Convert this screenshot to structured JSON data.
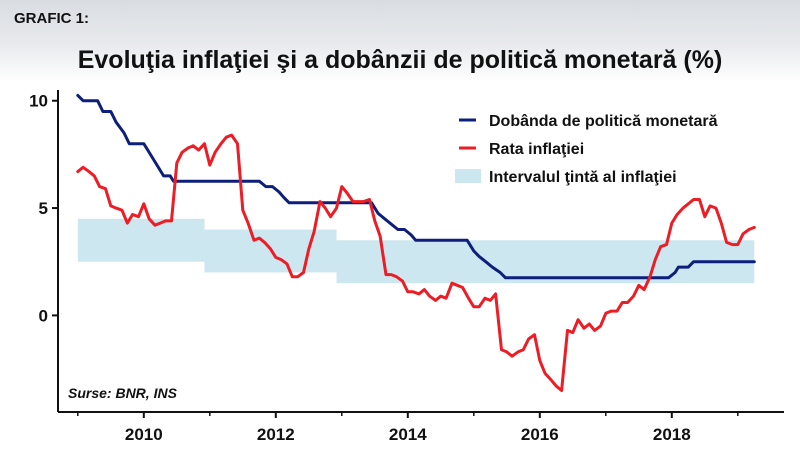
{
  "header": {
    "label": "GRAFIC 1:",
    "title": "Evoluţia inflaţiei şi a dobânzii de politică monetară (%)"
  },
  "chart_data": {
    "type": "line",
    "title": "Evoluţia inflaţiei şi a dobânzii de politică monetară (%)",
    "xlabel": "",
    "ylabel": "",
    "xlim": [
      2008.7,
      2019.7
    ],
    "ylim": [
      -4.5,
      10.5
    ],
    "x_ticks": [
      {
        "value": 2010,
        "label": "2010"
      },
      {
        "value": 2012,
        "label": "2012"
      },
      {
        "value": 2014,
        "label": "2014"
      },
      {
        "value": 2016,
        "label": "2016"
      },
      {
        "value": 2018,
        "label": "2018"
      }
    ],
    "y_ticks": [
      {
        "value": 10,
        "label": "10"
      },
      {
        "value": 5,
        "label": "5"
      },
      {
        "value": 0,
        "label": "0"
      }
    ],
    "grid": false,
    "legend_position": "top-right",
    "source": "Surse: BNR, INS",
    "colors": {
      "policy_rate": "#0d1f7a",
      "inflation": "#ee1c25",
      "target_band": "#cde7f0"
    },
    "series": [
      {
        "name": "Dobânda de politică monetară",
        "key": "policy_rate",
        "points": [
          [
            2009.0,
            10.25
          ],
          [
            2009.08,
            10.0
          ],
          [
            2009.3,
            10.0
          ],
          [
            2009.38,
            9.5
          ],
          [
            2009.5,
            9.5
          ],
          [
            2009.58,
            9.0
          ],
          [
            2009.7,
            8.5
          ],
          [
            2009.78,
            8.0
          ],
          [
            2010.0,
            8.0
          ],
          [
            2010.1,
            7.5
          ],
          [
            2010.2,
            7.0
          ],
          [
            2010.3,
            6.5
          ],
          [
            2010.4,
            6.5
          ],
          [
            2010.45,
            6.25
          ],
          [
            2011.75,
            6.25
          ],
          [
            2011.85,
            6.0
          ],
          [
            2011.95,
            6.0
          ],
          [
            2012.05,
            5.75
          ],
          [
            2012.12,
            5.5
          ],
          [
            2012.2,
            5.25
          ],
          [
            2013.45,
            5.25
          ],
          [
            2013.55,
            4.75
          ],
          [
            2013.65,
            4.5
          ],
          [
            2013.75,
            4.25
          ],
          [
            2013.85,
            4.0
          ],
          [
            2013.95,
            4.0
          ],
          [
            2014.05,
            3.75
          ],
          [
            2014.12,
            3.5
          ],
          [
            2014.9,
            3.5
          ],
          [
            2015.0,
            3.0
          ],
          [
            2015.08,
            2.75
          ],
          [
            2015.18,
            2.5
          ],
          [
            2015.28,
            2.25
          ],
          [
            2015.4,
            2.0
          ],
          [
            2015.48,
            1.75
          ],
          [
            2017.95,
            1.75
          ],
          [
            2018.05,
            2.0
          ],
          [
            2018.1,
            2.25
          ],
          [
            2018.25,
            2.25
          ],
          [
            2018.33,
            2.5
          ],
          [
            2019.25,
            2.5
          ]
        ]
      },
      {
        "name": "Rata inflaţiei",
        "key": "inflation",
        "points": [
          [
            2009.0,
            6.7
          ],
          [
            2009.08,
            6.9
          ],
          [
            2009.17,
            6.7
          ],
          [
            2009.25,
            6.5
          ],
          [
            2009.33,
            6.0
          ],
          [
            2009.42,
            5.9
          ],
          [
            2009.5,
            5.1
          ],
          [
            2009.58,
            5.0
          ],
          [
            2009.67,
            4.9
          ],
          [
            2009.75,
            4.3
          ],
          [
            2009.83,
            4.7
          ],
          [
            2009.92,
            4.6
          ],
          [
            2010.0,
            5.2
          ],
          [
            2010.08,
            4.5
          ],
          [
            2010.17,
            4.2
          ],
          [
            2010.25,
            4.3
          ],
          [
            2010.33,
            4.4
          ],
          [
            2010.42,
            4.4
          ],
          [
            2010.5,
            7.1
          ],
          [
            2010.58,
            7.6
          ],
          [
            2010.67,
            7.8
          ],
          [
            2010.75,
            7.9
          ],
          [
            2010.83,
            7.7
          ],
          [
            2010.92,
            8.0
          ],
          [
            2011.0,
            7.0
          ],
          [
            2011.08,
            7.6
          ],
          [
            2011.17,
            8.0
          ],
          [
            2011.25,
            8.3
          ],
          [
            2011.33,
            8.4
          ],
          [
            2011.42,
            8.0
          ],
          [
            2011.5,
            4.9
          ],
          [
            2011.58,
            4.3
          ],
          [
            2011.67,
            3.5
          ],
          [
            2011.75,
            3.6
          ],
          [
            2011.83,
            3.4
          ],
          [
            2011.92,
            3.1
          ],
          [
            2012.0,
            2.7
          ],
          [
            2012.08,
            2.6
          ],
          [
            2012.17,
            2.4
          ],
          [
            2012.25,
            1.8
          ],
          [
            2012.33,
            1.8
          ],
          [
            2012.42,
            2.0
          ],
          [
            2012.5,
            3.1
          ],
          [
            2012.58,
            3.9
          ],
          [
            2012.67,
            5.3
          ],
          [
            2012.75,
            5.0
          ],
          [
            2012.83,
            4.6
          ],
          [
            2012.92,
            5.0
          ],
          [
            2013.0,
            6.0
          ],
          [
            2013.08,
            5.7
          ],
          [
            2013.17,
            5.3
          ],
          [
            2013.25,
            5.3
          ],
          [
            2013.33,
            5.3
          ],
          [
            2013.42,
            5.4
          ],
          [
            2013.5,
            4.4
          ],
          [
            2013.58,
            3.7
          ],
          [
            2013.67,
            1.9
          ],
          [
            2013.75,
            1.9
          ],
          [
            2013.83,
            1.8
          ],
          [
            2013.92,
            1.6
          ],
          [
            2014.0,
            1.1
          ],
          [
            2014.08,
            1.1
          ],
          [
            2014.17,
            1.0
          ],
          [
            2014.25,
            1.2
          ],
          [
            2014.33,
            0.9
          ],
          [
            2014.42,
            0.7
          ],
          [
            2014.5,
            0.9
          ],
          [
            2014.58,
            0.8
          ],
          [
            2014.67,
            1.5
          ],
          [
            2014.75,
            1.4
          ],
          [
            2014.83,
            1.3
          ],
          [
            2014.92,
            0.8
          ],
          [
            2015.0,
            0.4
          ],
          [
            2015.08,
            0.4
          ],
          [
            2015.17,
            0.8
          ],
          [
            2015.25,
            0.7
          ],
          [
            2015.33,
            1.0
          ],
          [
            2015.42,
            -1.6
          ],
          [
            2015.5,
            -1.7
          ],
          [
            2015.58,
            -1.9
          ],
          [
            2015.67,
            -1.7
          ],
          [
            2015.75,
            -1.6
          ],
          [
            2015.83,
            -1.1
          ],
          [
            2015.92,
            -0.9
          ],
          [
            2016.0,
            -2.1
          ],
          [
            2016.08,
            -2.7
          ],
          [
            2016.17,
            -3.0
          ],
          [
            2016.25,
            -3.3
          ],
          [
            2016.33,
            -3.5
          ],
          [
            2016.42,
            -0.7
          ],
          [
            2016.5,
            -0.8
          ],
          [
            2016.58,
            -0.2
          ],
          [
            2016.67,
            -0.6
          ],
          [
            2016.75,
            -0.4
          ],
          [
            2016.83,
            -0.7
          ],
          [
            2016.92,
            -0.5
          ],
          [
            2017.0,
            0.1
          ],
          [
            2017.08,
            0.2
          ],
          [
            2017.17,
            0.2
          ],
          [
            2017.25,
            0.6
          ],
          [
            2017.33,
            0.6
          ],
          [
            2017.42,
            0.9
          ],
          [
            2017.5,
            1.4
          ],
          [
            2017.58,
            1.2
          ],
          [
            2017.67,
            1.8
          ],
          [
            2017.75,
            2.6
          ],
          [
            2017.83,
            3.2
          ],
          [
            2017.92,
            3.3
          ],
          [
            2018.0,
            4.3
          ],
          [
            2018.08,
            4.7
          ],
          [
            2018.17,
            5.0
          ],
          [
            2018.25,
            5.2
          ],
          [
            2018.33,
            5.4
          ],
          [
            2018.42,
            5.4
          ],
          [
            2018.5,
            4.6
          ],
          [
            2018.58,
            5.1
          ],
          [
            2018.67,
            5.0
          ],
          [
            2018.75,
            4.3
          ],
          [
            2018.83,
            3.4
          ],
          [
            2018.92,
            3.3
          ],
          [
            2019.0,
            3.3
          ],
          [
            2019.08,
            3.8
          ],
          [
            2019.17,
            4.0
          ],
          [
            2019.25,
            4.1
          ]
        ]
      },
      {
        "name": "Intervalul ţintă al inflaţiei",
        "key": "target_band",
        "segments": [
          {
            "x_start": 2009.0,
            "x_end": 2010.92,
            "low": 2.5,
            "high": 4.5
          },
          {
            "x_start": 2010.92,
            "x_end": 2012.92,
            "low": 2.0,
            "high": 4.0
          },
          {
            "x_start": 2012.92,
            "x_end": 2019.25,
            "low": 1.5,
            "high": 3.5
          }
        ]
      }
    ]
  }
}
